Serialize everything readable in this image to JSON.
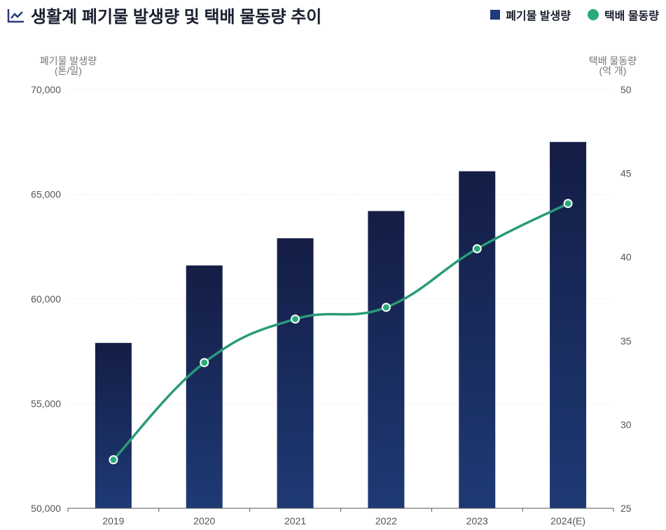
{
  "title": "생활계 폐기물 발생량 및 택배 물동량 추이",
  "legend": {
    "bar_label": "폐기물 발생량",
    "line_label": "택배 물동량"
  },
  "colors": {
    "bar_top": "#141d45",
    "bar_bottom": "#1e3a75",
    "line": "#2a9a7a",
    "point_fill": "#2aaa78"
  },
  "chart_data": {
    "type": "bar",
    "title": "생활계 폐기물 발생량 및 택배 물동량 추이",
    "categories": [
      "2019",
      "2020",
      "2021",
      "2022",
      "2023",
      "2024(E)"
    ],
    "series": [
      {
        "name": "폐기물 발생량",
        "type": "bar",
        "axis": "left",
        "values": [
          57900,
          61600,
          62900,
          64200,
          66100,
          67500
        ]
      },
      {
        "name": "택배 물동량",
        "type": "line",
        "axis": "right",
        "values": [
          27.9,
          33.7,
          36.3,
          37.0,
          40.5,
          43.2
        ]
      }
    ],
    "ylabel_left_line1": "폐기물 발생량",
    "ylabel_left_line2": "(톤/일)",
    "ylabel_right_line1": "택배 물동량",
    "ylabel_right_line2": "(억 개)",
    "ylim_left": [
      50000,
      70000
    ],
    "ylim_right": [
      25,
      50
    ],
    "left_ticks": [
      "50,000",
      "55,000",
      "60,000",
      "65,000",
      "70,000"
    ],
    "right_ticks": [
      "25",
      "30",
      "35",
      "40",
      "45",
      "50"
    ],
    "grid": true,
    "legend_position": "top-right"
  }
}
